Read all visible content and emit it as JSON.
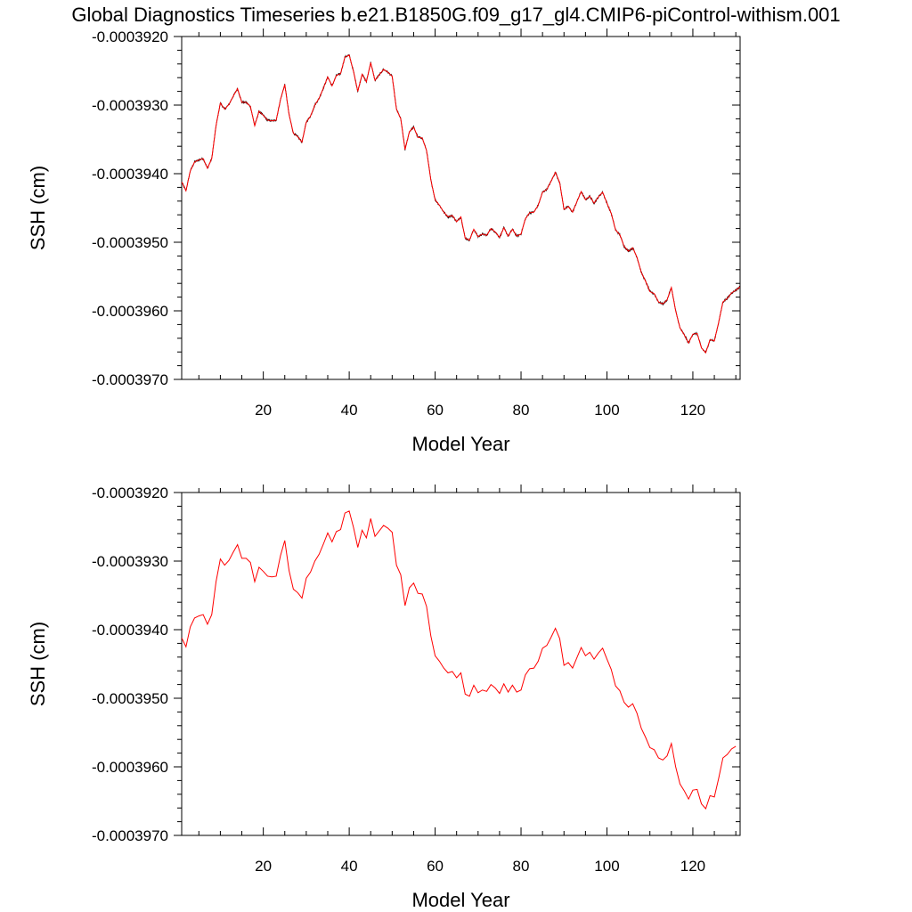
{
  "title": "Global Diagnostics Timeseries b.e21.B1850G.f09_g17_gl4.CMIP6-piControl-withism.001",
  "colors": {
    "monthly": "#000000",
    "annual": "#ff0000",
    "axes": "#000000"
  },
  "chart_data": [
    {
      "type": "line",
      "xlabel": "Model Year",
      "ylabel": "SSH (cm)",
      "xlim": [
        1,
        131
      ],
      "ylim": [
        -0.000397,
        -0.000392
      ],
      "xticks": [
        20,
        40,
        60,
        80,
        100,
        120
      ],
      "yticks": [
        -0.000397,
        -0.000396,
        -0.000395,
        -0.000394,
        -0.000393,
        -0.000392
      ],
      "ytick_labels": [
        "-0.0003970",
        "-0.0003960",
        "-0.0003950",
        "-0.0003940",
        "-0.0003930",
        "-0.0003920"
      ],
      "series": [
        {
          "kind": "monthly",
          "color": "#000000",
          "note_on_resolution": "monthly values with ~±0.15e-7 scatter about the annual means",
          "x": [
            1,
            2,
            3,
            4,
            5,
            6,
            7,
            8,
            9,
            10,
            11,
            12,
            13,
            14,
            15,
            16,
            17,
            18,
            19,
            20,
            21,
            22,
            23,
            24,
            25,
            26,
            27,
            28,
            29,
            30,
            31,
            32,
            33,
            34,
            35,
            36,
            37,
            38,
            39,
            40,
            41,
            42,
            43,
            44,
            45,
            46,
            47,
            48,
            49,
            50,
            51,
            52,
            53,
            54,
            55,
            56,
            57,
            58,
            59,
            60,
            61,
            62,
            63,
            64,
            65,
            66,
            67,
            68,
            69,
            70,
            71,
            72,
            73,
            74,
            75,
            76,
            77,
            78,
            79,
            80,
            81,
            82,
            83,
            84,
            85,
            86,
            87,
            88,
            89,
            90,
            91,
            92,
            93,
            94,
            95,
            96,
            97,
            98,
            99,
            100,
            101,
            102,
            103,
            104,
            105,
            106,
            107,
            108,
            109,
            110,
            111,
            112,
            113,
            114,
            115,
            116,
            117,
            118,
            119,
            120,
            121,
            122,
            123,
            124,
            125,
            126,
            127,
            128,
            129,
            130,
            131
          ],
          "y": [
            -0.00039412,
            -0.00039425,
            -0.00039396,
            -0.00039383,
            -0.0003938,
            -0.00039378,
            -0.00039392,
            -0.00039378,
            -0.0003933,
            -0.00039297,
            -0.00039306,
            -0.00039299,
            -0.00039287,
            -0.00039276,
            -0.00039296,
            -0.00039296,
            -0.00039302,
            -0.0003933,
            -0.00039309,
            -0.00039315,
            -0.00039322,
            -0.00039323,
            -0.00039322,
            -0.00039292,
            -0.0003927,
            -0.00039314,
            -0.00039341,
            -0.00039346,
            -0.00039354,
            -0.00039325,
            -0.00039316,
            -0.000393,
            -0.0003929,
            -0.00039275,
            -0.00039259,
            -0.00039272,
            -0.00039257,
            -0.00039254,
            -0.0003923,
            -0.00039227,
            -0.00039251,
            -0.0003928,
            -0.00039255,
            -0.00039266,
            -0.00039238,
            -0.00039264,
            -0.00039256,
            -0.00039248,
            -0.00039252,
            -0.00039258,
            -0.00039306,
            -0.0003932,
            -0.00039365,
            -0.00039339,
            -0.00039332,
            -0.00039347,
            -0.00039348,
            -0.00039366,
            -0.00039409,
            -0.00039438,
            -0.00039446,
            -0.00039456,
            -0.00039463,
            -0.00039461,
            -0.0003947,
            -0.00039463,
            -0.00039494,
            -0.00039497,
            -0.00039481,
            -0.00039492,
            -0.00039488,
            -0.0003949,
            -0.0003948,
            -0.00039485,
            -0.00039493,
            -0.00039479,
            -0.00039491,
            -0.00039481,
            -0.00039491,
            -0.00039488,
            -0.00039466,
            -0.00039457,
            -0.00039456,
            -0.00039446,
            -0.00039427,
            -0.00039423,
            -0.00039411,
            -0.00039398,
            -0.00039413,
            -0.00039452,
            -0.00039448,
            -0.00039456,
            -0.00039441,
            -0.00039426,
            -0.00039438,
            -0.00039433,
            -0.00039443,
            -0.00039434,
            -0.00039427,
            -0.00039443,
            -0.00039458,
            -0.00039482,
            -0.00039489,
            -0.00039506,
            -0.00039513,
            -0.00039508,
            -0.00039522,
            -0.00039544,
            -0.00039557,
            -0.00039572,
            -0.00039575,
            -0.00039587,
            -0.0003959,
            -0.00039584,
            -0.00039566,
            -0.000396,
            -0.00039625,
            -0.00039635,
            -0.00039647,
            -0.00039634,
            -0.00039633,
            -0.00039654,
            -0.00039661,
            -0.00039642,
            -0.00039644,
            -0.00039617,
            -0.00039587,
            -0.00039582,
            -0.00039574,
            -0.0003957,
            -0.00039565
          ]
        },
        {
          "kind": "annual",
          "color": "#ff0000",
          "x": [
            1,
            2,
            3,
            4,
            5,
            6,
            7,
            8,
            9,
            10,
            11,
            12,
            13,
            14,
            15,
            16,
            17,
            18,
            19,
            20,
            21,
            22,
            23,
            24,
            25,
            26,
            27,
            28,
            29,
            30,
            31,
            32,
            33,
            34,
            35,
            36,
            37,
            38,
            39,
            40,
            41,
            42,
            43,
            44,
            45,
            46,
            47,
            48,
            49,
            50,
            51,
            52,
            53,
            54,
            55,
            56,
            57,
            58,
            59,
            60,
            61,
            62,
            63,
            64,
            65,
            66,
            67,
            68,
            69,
            70,
            71,
            72,
            73,
            74,
            75,
            76,
            77,
            78,
            79,
            80,
            81,
            82,
            83,
            84,
            85,
            86,
            87,
            88,
            89,
            90,
            91,
            92,
            93,
            94,
            95,
            96,
            97,
            98,
            99,
            100,
            101,
            102,
            103,
            104,
            105,
            106,
            107,
            108,
            109,
            110,
            111,
            112,
            113,
            114,
            115,
            116,
            117,
            118,
            119,
            120,
            121,
            122,
            123,
            124,
            125,
            126,
            127,
            128,
            129,
            130,
            131
          ],
          "y": [
            -0.00039412,
            -0.00039425,
            -0.00039396,
            -0.00039383,
            -0.0003938,
            -0.00039378,
            -0.00039392,
            -0.00039378,
            -0.0003933,
            -0.00039297,
            -0.00039306,
            -0.00039299,
            -0.00039287,
            -0.00039276,
            -0.00039296,
            -0.00039296,
            -0.00039302,
            -0.0003933,
            -0.00039309,
            -0.00039315,
            -0.00039322,
            -0.00039323,
            -0.00039322,
            -0.00039292,
            -0.0003927,
            -0.00039314,
            -0.00039341,
            -0.00039346,
            -0.00039354,
            -0.00039325,
            -0.00039316,
            -0.000393,
            -0.0003929,
            -0.00039275,
            -0.00039259,
            -0.00039272,
            -0.00039257,
            -0.00039254,
            -0.0003923,
            -0.00039227,
            -0.00039251,
            -0.0003928,
            -0.00039255,
            -0.00039266,
            -0.00039238,
            -0.00039264,
            -0.00039256,
            -0.00039248,
            -0.00039252,
            -0.00039258,
            -0.00039306,
            -0.0003932,
            -0.00039365,
            -0.00039339,
            -0.00039332,
            -0.00039347,
            -0.00039348,
            -0.00039366,
            -0.00039409,
            -0.00039438,
            -0.00039446,
            -0.00039456,
            -0.00039463,
            -0.00039461,
            -0.0003947,
            -0.00039463,
            -0.00039494,
            -0.00039497,
            -0.00039481,
            -0.00039492,
            -0.00039488,
            -0.0003949,
            -0.0003948,
            -0.00039485,
            -0.00039493,
            -0.00039479,
            -0.00039491,
            -0.00039481,
            -0.00039491,
            -0.00039488,
            -0.00039466,
            -0.00039457,
            -0.00039456,
            -0.00039446,
            -0.00039427,
            -0.00039423,
            -0.00039411,
            -0.00039398,
            -0.00039413,
            -0.00039452,
            -0.00039448,
            -0.00039456,
            -0.00039441,
            -0.00039426,
            -0.00039438,
            -0.00039433,
            -0.00039443,
            -0.00039434,
            -0.00039427,
            -0.00039443,
            -0.00039458,
            -0.00039482,
            -0.00039489,
            -0.00039506,
            -0.00039513,
            -0.00039508,
            -0.00039522,
            -0.00039544,
            -0.00039557,
            -0.00039572,
            -0.00039575,
            -0.00039587,
            -0.0003959,
            -0.00039584,
            -0.00039566,
            -0.000396,
            -0.00039625,
            -0.00039635,
            -0.00039647,
            -0.00039634,
            -0.00039633,
            -0.00039654,
            -0.00039661,
            -0.00039642,
            -0.00039644,
            -0.00039617,
            -0.00039587,
            -0.00039582,
            -0.00039574,
            -0.0003957,
            -0.00039565
          ]
        }
      ]
    },
    {
      "type": "line",
      "xlabel": "Model Year",
      "ylabel": "SSH (cm)",
      "xlim": [
        1,
        130
      ],
      "ylim": [
        -0.000397,
        -0.000392
      ],
      "xticks": [
        20,
        40,
        60,
        80,
        100,
        120
      ],
      "yticks": [
        -0.000397,
        -0.000396,
        -0.000395,
        -0.000394,
        -0.000393,
        -0.000392
      ],
      "ytick_labels": [
        "-0.0003970",
        "-0.0003960",
        "-0.0003950",
        "-0.0003940",
        "-0.0003930",
        "-0.0003920"
      ],
      "series": [
        {
          "kind": "annual",
          "color": "#ff0000",
          "x": [
            1,
            2,
            3,
            4,
            5,
            6,
            7,
            8,
            9,
            10,
            11,
            12,
            13,
            14,
            15,
            16,
            17,
            18,
            19,
            20,
            21,
            22,
            23,
            24,
            25,
            26,
            27,
            28,
            29,
            30,
            31,
            32,
            33,
            34,
            35,
            36,
            37,
            38,
            39,
            40,
            41,
            42,
            43,
            44,
            45,
            46,
            47,
            48,
            49,
            50,
            51,
            52,
            53,
            54,
            55,
            56,
            57,
            58,
            59,
            60,
            61,
            62,
            63,
            64,
            65,
            66,
            67,
            68,
            69,
            70,
            71,
            72,
            73,
            74,
            75,
            76,
            77,
            78,
            79,
            80,
            81,
            82,
            83,
            84,
            85,
            86,
            87,
            88,
            89,
            90,
            91,
            92,
            93,
            94,
            95,
            96,
            97,
            98,
            99,
            100,
            101,
            102,
            103,
            104,
            105,
            106,
            107,
            108,
            109,
            110,
            111,
            112,
            113,
            114,
            115,
            116,
            117,
            118,
            119,
            120,
            121,
            122,
            123,
            124,
            125,
            126,
            127,
            128,
            129,
            130
          ],
          "y": [
            -0.00039412,
            -0.00039425,
            -0.00039396,
            -0.00039383,
            -0.0003938,
            -0.00039378,
            -0.00039392,
            -0.00039378,
            -0.0003933,
            -0.00039297,
            -0.00039306,
            -0.00039299,
            -0.00039287,
            -0.00039276,
            -0.00039296,
            -0.00039296,
            -0.00039302,
            -0.0003933,
            -0.00039309,
            -0.00039315,
            -0.00039322,
            -0.00039323,
            -0.00039322,
            -0.00039292,
            -0.0003927,
            -0.00039314,
            -0.00039341,
            -0.00039346,
            -0.00039354,
            -0.00039325,
            -0.00039316,
            -0.000393,
            -0.0003929,
            -0.00039275,
            -0.00039259,
            -0.00039272,
            -0.00039257,
            -0.00039254,
            -0.0003923,
            -0.00039227,
            -0.00039251,
            -0.0003928,
            -0.00039255,
            -0.00039266,
            -0.00039238,
            -0.00039264,
            -0.00039256,
            -0.00039248,
            -0.00039252,
            -0.00039258,
            -0.00039306,
            -0.0003932,
            -0.00039365,
            -0.00039339,
            -0.00039332,
            -0.00039347,
            -0.00039348,
            -0.00039366,
            -0.00039409,
            -0.00039438,
            -0.00039446,
            -0.00039456,
            -0.00039463,
            -0.00039461,
            -0.0003947,
            -0.00039463,
            -0.00039494,
            -0.00039497,
            -0.00039481,
            -0.00039492,
            -0.00039488,
            -0.0003949,
            -0.0003948,
            -0.00039485,
            -0.00039493,
            -0.00039479,
            -0.00039491,
            -0.00039481,
            -0.00039491,
            -0.00039488,
            -0.00039466,
            -0.00039457,
            -0.00039456,
            -0.00039446,
            -0.00039427,
            -0.00039423,
            -0.00039411,
            -0.00039398,
            -0.00039413,
            -0.00039452,
            -0.00039448,
            -0.00039456,
            -0.00039441,
            -0.00039426,
            -0.00039438,
            -0.00039433,
            -0.00039443,
            -0.00039434,
            -0.00039427,
            -0.00039443,
            -0.00039458,
            -0.00039482,
            -0.00039489,
            -0.00039506,
            -0.00039513,
            -0.00039508,
            -0.00039522,
            -0.00039544,
            -0.00039557,
            -0.00039572,
            -0.00039575,
            -0.00039587,
            -0.0003959,
            -0.00039584,
            -0.00039566,
            -0.000396,
            -0.00039625,
            -0.00039635,
            -0.00039647,
            -0.00039634,
            -0.00039633,
            -0.00039654,
            -0.00039661,
            -0.00039642,
            -0.00039644,
            -0.00039617,
            -0.00039587,
            -0.00039582,
            -0.00039574,
            -0.0003957
          ]
        }
      ]
    }
  ]
}
